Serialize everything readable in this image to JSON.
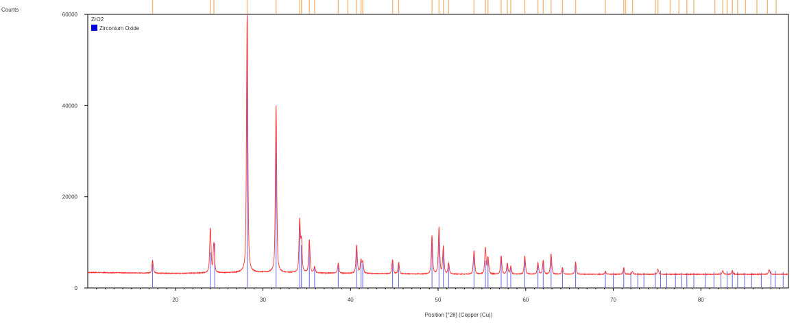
{
  "chart_data": {
    "type": "line",
    "title": "",
    "ylabel": "Counts",
    "xlabel": "Position [°2θ] (Copper (Cu))",
    "xlim": [
      10,
      90
    ],
    "ylim": [
      0,
      60000
    ],
    "x_ticks": [
      20,
      30,
      40,
      50,
      60,
      70,
      80
    ],
    "y_ticks": [
      0,
      20000,
      40000,
      60000
    ],
    "grid": false,
    "legend": {
      "position": "top-left",
      "title": "ZrO2",
      "entries": [
        {
          "name": "Zirconium Oxide",
          "color": "#0000dd"
        }
      ]
    },
    "colors": {
      "measured": "#ff3030",
      "phase_sticks": "#6e6ef0",
      "reference_ticks": "#f5b878",
      "axes": "#000000"
    },
    "series": [
      {
        "name": "",
        "kind": "measured-pattern",
        "baseline": [
          [
            10,
            3400
          ],
          [
            20,
            3200
          ],
          [
            30,
            3400
          ],
          [
            40,
            3200
          ],
          [
            50,
            3000
          ],
          [
            60,
            3000
          ],
          [
            70,
            3000
          ],
          [
            80,
            3000
          ],
          [
            90,
            3000
          ]
        ],
        "peaks": [
          [
            17.4,
            6000
          ],
          [
            24.0,
            13000
          ],
          [
            24.4,
            9800
          ],
          [
            28.2,
            60000
          ],
          [
            31.5,
            40000
          ],
          [
            34.2,
            14600
          ],
          [
            34.4,
            10000
          ],
          [
            35.3,
            10500
          ],
          [
            35.9,
            4600
          ],
          [
            38.6,
            5400
          ],
          [
            40.7,
            9400
          ],
          [
            41.2,
            6000
          ],
          [
            41.4,
            5600
          ],
          [
            44.8,
            6200
          ],
          [
            45.5,
            5600
          ],
          [
            49.3,
            11400
          ],
          [
            50.1,
            13200
          ],
          [
            50.6,
            9000
          ],
          [
            51.2,
            5400
          ],
          [
            54.1,
            8200
          ],
          [
            55.4,
            8800
          ],
          [
            55.7,
            6600
          ],
          [
            57.2,
            7000
          ],
          [
            57.9,
            5400
          ],
          [
            58.3,
            4700
          ],
          [
            59.9,
            7000
          ],
          [
            61.4,
            5500
          ],
          [
            62.0,
            6000
          ],
          [
            62.9,
            7400
          ],
          [
            64.2,
            4400
          ],
          [
            65.7,
            5700
          ],
          [
            69.1,
            3600
          ],
          [
            71.2,
            4400
          ],
          [
            72.2,
            3600
          ],
          [
            75.1,
            4100
          ],
          [
            82.5,
            3800
          ],
          [
            83.6,
            3800
          ],
          [
            87.8,
            4000
          ]
        ]
      }
    ],
    "phase_sticks": {
      "name": "Zirconium Oxide",
      "values": [
        [
          17.4,
          6200
        ],
        [
          24.0,
          7800
        ],
        [
          24.5,
          9800
        ],
        [
          28.2,
          54000
        ],
        [
          31.5,
          37000
        ],
        [
          34.2,
          14000
        ],
        [
          34.4,
          9400
        ],
        [
          35.3,
          10200
        ],
        [
          35.9,
          4800
        ],
        [
          38.6,
          5000
        ],
        [
          40.7,
          9000
        ],
        [
          41.2,
          6000
        ],
        [
          41.4,
          5500
        ],
        [
          44.8,
          6000
        ],
        [
          45.5,
          5500
        ],
        [
          49.3,
          10000
        ],
        [
          50.1,
          13000
        ],
        [
          50.6,
          9000
        ],
        [
          51.2,
          5200
        ],
        [
          54.1,
          8000
        ],
        [
          55.4,
          6000
        ],
        [
          55.7,
          6500
        ],
        [
          57.2,
          6800
        ],
        [
          57.9,
          5200
        ],
        [
          58.3,
          4500
        ],
        [
          59.9,
          6500
        ],
        [
          61.4,
          5500
        ],
        [
          62.0,
          5800
        ],
        [
          62.9,
          7000
        ],
        [
          64.2,
          4200
        ],
        [
          65.7,
          5500
        ],
        [
          69.1,
          3800
        ],
        [
          70.0,
          3300
        ],
        [
          71.2,
          4200
        ],
        [
          72.0,
          3500
        ],
        [
          72.8,
          3300
        ],
        [
          73.5,
          3300
        ],
        [
          74.8,
          3500
        ],
        [
          75.4,
          3800
        ],
        [
          76.1,
          3300
        ],
        [
          77.1,
          3300
        ],
        [
          77.8,
          3300
        ],
        [
          78.4,
          3300
        ],
        [
          79.2,
          3300
        ],
        [
          80.5,
          3300
        ],
        [
          81.5,
          3500
        ],
        [
          82.3,
          3500
        ],
        [
          83.0,
          3700
        ],
        [
          83.6,
          3700
        ],
        [
          84.2,
          3500
        ],
        [
          85.0,
          3300
        ],
        [
          85.8,
          3300
        ],
        [
          86.9,
          3300
        ],
        [
          88.0,
          3800
        ],
        [
          88.5,
          3800
        ],
        [
          89.4,
          3500
        ]
      ]
    },
    "reference_ticks": [
      17.4,
      24.0,
      24.4,
      28.2,
      31.5,
      34.2,
      34.4,
      35.3,
      35.9,
      38.6,
      39.7,
      40.7,
      41.2,
      41.4,
      44.8,
      45.5,
      49.3,
      50.1,
      50.6,
      51.2,
      54.1,
      55.4,
      55.7,
      57.2,
      57.9,
      58.3,
      59.9,
      61.4,
      62.0,
      62.9,
      64.2,
      65.7,
      69.1,
      71.2,
      71.4,
      72.2,
      74.8,
      75.1,
      76.5,
      77.5,
      78.4,
      79.2,
      81.6,
      82.5,
      83.0,
      83.6,
      84.2,
      85.1,
      86.4,
      87.6,
      88.6
    ]
  }
}
